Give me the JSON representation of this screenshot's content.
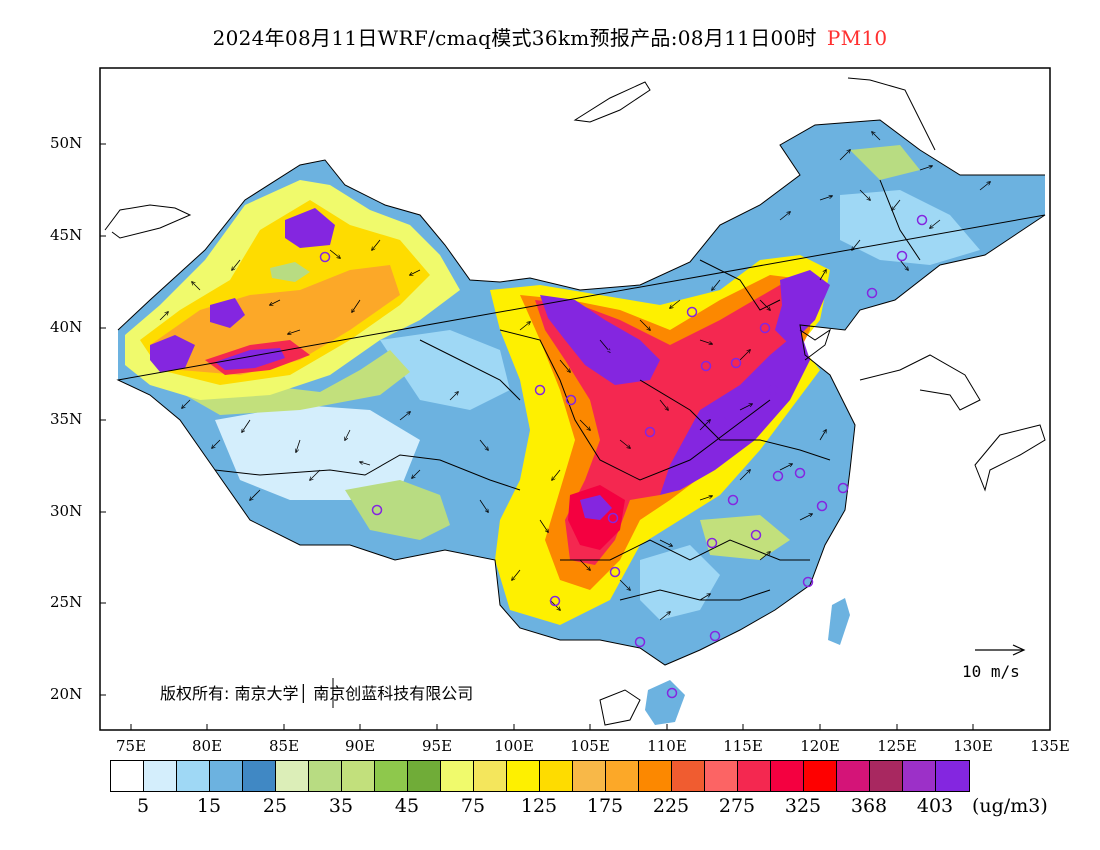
{
  "title": {
    "main": "2024年08月11日WRF/cmaq模式36km预报产品:08月11日00时",
    "pollutant": "PM10"
  },
  "lat_labels": [
    "50N",
    "45N",
    "40N",
    "35N",
    "30N",
    "25N",
    "20N"
  ],
  "lon_labels": [
    "75E",
    "80E",
    "85E",
    "90E",
    "95E",
    "100E",
    "105E",
    "110E",
    "115E",
    "120E",
    "125E",
    "130E",
    "135E"
  ],
  "copyright": "版权所有: 南京大学│ 南京创蓝科技有限公司",
  "wind_scale": "10 m/s",
  "colorbar": {
    "colors": [
      "#ffffff",
      "#d4eefc",
      "#9fd8f5",
      "#6cb2e0",
      "#4088c4",
      "#dceeb8",
      "#b8dc82",
      "#c2e07c",
      "#8ec84c",
      "#70ac38",
      "#f0fa6c",
      "#f4e65c",
      "#fef000",
      "#fedc00",
      "#f8b848",
      "#fca828",
      "#fc8800",
      "#f05c30",
      "#fc6464",
      "#f42850",
      "#f40040",
      "#fe0000",
      "#d41478",
      "#a82860",
      "#9c30c8",
      "#8426e0"
    ],
    "labels": [
      "5",
      "15",
      "25",
      "35",
      "45",
      "75",
      "125",
      "175",
      "225",
      "275",
      "325",
      "368",
      "403"
    ],
    "unit": "(ug/m3)"
  }
}
